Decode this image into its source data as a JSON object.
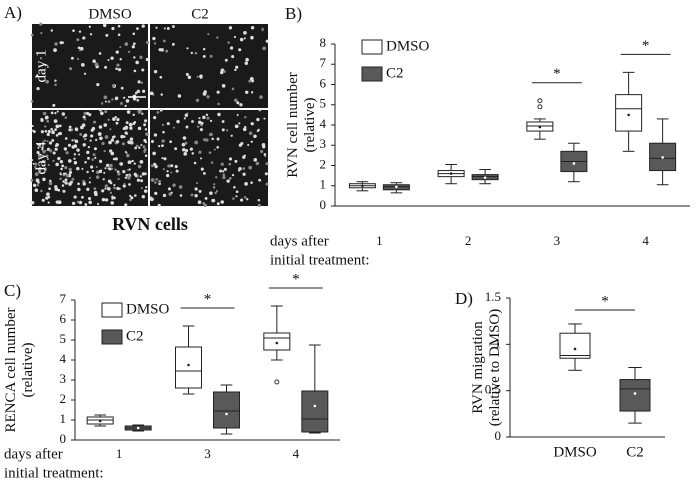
{
  "panel_a": {
    "panel_label": "A)",
    "columns": [
      "DMSO",
      "C2"
    ],
    "rows": [
      "day 1",
      "day 4"
    ],
    "caption": "RVN cells"
  },
  "chart_data": [
    {
      "type": "box",
      "panel_label": "B)",
      "ylabel_lines": [
        "RVN cell number",
        "(relative)"
      ],
      "xlabel_lines": [
        "days after",
        "initial treatment:"
      ],
      "categories": [
        "1",
        "2",
        "3",
        "4"
      ],
      "ylim": [
        0,
        8
      ],
      "yticks": [
        0,
        1,
        2,
        3,
        4,
        5,
        6,
        7,
        8
      ],
      "legend": "upper left",
      "series": [
        {
          "name": "DMSO",
          "color": "#ffffff",
          "boxes": [
            {
              "min": 0.75,
              "q1": 0.9,
              "median": 1.0,
              "q3": 1.1,
              "max": 1.2,
              "mean": 1.0,
              "outliers": []
            },
            {
              "min": 1.1,
              "q1": 1.45,
              "median": 1.6,
              "q3": 1.75,
              "max": 2.05,
              "mean": 1.6,
              "outliers": []
            },
            {
              "min": 3.3,
              "q1": 3.7,
              "median": 3.95,
              "q3": 4.15,
              "max": 4.3,
              "mean": 3.9,
              "outliers": [
                4.9,
                5.2
              ]
            },
            {
              "min": 2.7,
              "q1": 3.7,
              "median": 4.8,
              "q3": 5.5,
              "max": 6.6,
              "mean": 4.5,
              "outliers": []
            }
          ]
        },
        {
          "name": "C2",
          "color": "#595959",
          "boxes": [
            {
              "min": 0.65,
              "q1": 0.8,
              "median": 0.95,
              "q3": 1.05,
              "max": 1.15,
              "mean": 0.95,
              "outliers": []
            },
            {
              "min": 1.1,
              "q1": 1.3,
              "median": 1.45,
              "q3": 1.55,
              "max": 1.8,
              "mean": 1.4,
              "outliers": []
            },
            {
              "min": 1.2,
              "q1": 1.7,
              "median": 2.2,
              "q3": 2.7,
              "max": 3.1,
              "mean": 2.1,
              "outliers": []
            },
            {
              "min": 1.05,
              "q1": 1.75,
              "median": 2.35,
              "q3": 3.1,
              "max": 4.3,
              "mean": 2.4,
              "outliers": []
            }
          ]
        }
      ],
      "significance": [
        {
          "category_index": 2,
          "label": "*"
        },
        {
          "category_index": 3,
          "label": "*"
        }
      ]
    },
    {
      "type": "box",
      "panel_label": "C)",
      "ylabel_lines": [
        "RENCA cell number",
        "(relative)"
      ],
      "xlabel_lines": [
        "days after",
        "initial treatment:"
      ],
      "categories": [
        "1",
        "3",
        "4"
      ],
      "ylim": [
        0,
        7
      ],
      "yticks": [
        0,
        1,
        2,
        3,
        4,
        5,
        6,
        7
      ],
      "legend": "upper left",
      "series": [
        {
          "name": "DMSO",
          "color": "#ffffff",
          "boxes": [
            {
              "min": 0.7,
              "q1": 0.8,
              "median": 1.0,
              "q3": 1.15,
              "max": 1.25,
              "mean": 0.95,
              "outliers": []
            },
            {
              "min": 2.3,
              "q1": 2.6,
              "median": 3.45,
              "q3": 4.65,
              "max": 5.7,
              "mean": 3.75,
              "outliers": []
            },
            {
              "min": 4.0,
              "q1": 4.5,
              "median": 5.1,
              "q3": 5.35,
              "max": 6.7,
              "mean": 4.85,
              "outliers": [
                2.9
              ]
            }
          ]
        },
        {
          "name": "C2",
          "color": "#595959",
          "boxes": [
            {
              "min": 0.45,
              "q1": 0.5,
              "median": 0.6,
              "q3": 0.7,
              "max": 0.75,
              "mean": 0.6,
              "outliers": []
            },
            {
              "min": 0.3,
              "q1": 0.6,
              "median": 1.45,
              "q3": 2.4,
              "max": 2.75,
              "mean": 1.3,
              "outliers": []
            },
            {
              "min": 0.35,
              "q1": 0.4,
              "median": 1.05,
              "q3": 2.45,
              "max": 4.75,
              "mean": 1.7,
              "outliers": []
            }
          ]
        }
      ],
      "significance": [
        {
          "category_index": 1,
          "label": "*"
        },
        {
          "category_index": 2,
          "label": "*"
        }
      ]
    },
    {
      "type": "box",
      "panel_label": "D)",
      "ylabel_lines": [
        "RVN migration",
        "(relative to DMSO)"
      ],
      "categories": [
        "DMSO",
        "C2"
      ],
      "colors": [
        "#ffffff",
        "#595959"
      ],
      "ylim": [
        0,
        1.5
      ],
      "yticks": [
        0,
        0.5,
        1,
        1.5
      ],
      "boxes": [
        {
          "min": 0.72,
          "q1": 0.85,
          "median": 0.88,
          "q3": 1.12,
          "max": 1.22,
          "mean": 0.95,
          "outliers": []
        },
        {
          "min": 0.15,
          "q1": 0.28,
          "median": 0.52,
          "q3": 0.62,
          "max": 0.75,
          "mean": 0.47,
          "outliers": []
        }
      ],
      "significance_pair": {
        "label": "*"
      }
    }
  ]
}
